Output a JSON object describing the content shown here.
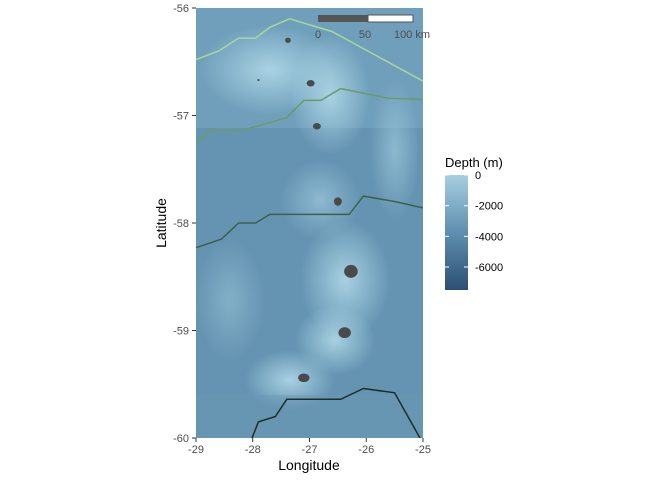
{
  "chart_data": {
    "type": "map",
    "xlabel": "Longitude",
    "ylabel": "Latitude",
    "xlim": [
      -29,
      -25
    ],
    "ylim": [
      -60,
      -56
    ],
    "x_ticks": [
      {
        "value": -29,
        "label": "-29"
      },
      {
        "value": -28,
        "label": "-28"
      },
      {
        "value": -27,
        "label": "-27"
      },
      {
        "value": -26,
        "label": "-26"
      },
      {
        "value": -25,
        "label": "-25"
      }
    ],
    "y_ticks": [
      {
        "value": -56,
        "label": "-56"
      },
      {
        "value": -57,
        "label": "-57"
      },
      {
        "value": -58,
        "label": "-58"
      },
      {
        "value": -59,
        "label": "-59"
      },
      {
        "value": -60,
        "label": "-60"
      }
    ],
    "legend": {
      "title": "Depth (m)",
      "placement": "right",
      "range": [
        -7500,
        0
      ],
      "color_shallow": "#a6cfe0",
      "color_deep": "#2c4f72",
      "breaks": [
        {
          "value": 0,
          "label": "0"
        },
        {
          "value": -2000,
          "label": "-2000"
        },
        {
          "value": -4000,
          "label": "-4000"
        },
        {
          "value": -6000,
          "label": "-6000"
        }
      ]
    },
    "scale_bar": {
      "labels": [
        "0",
        "50",
        "100 km"
      ]
    },
    "front_lines": [
      {
        "color": "#a8d79b",
        "points": [
          [
            -29,
            -56.48
          ],
          [
            -28.6,
            -56.4
          ],
          [
            -28.25,
            -56.28
          ],
          [
            -27.95,
            -56.28
          ],
          [
            -27.7,
            -56.18
          ],
          [
            -27.35,
            -56.1
          ],
          [
            -26.6,
            -56.22
          ],
          [
            -25.8,
            -56.45
          ],
          [
            -25,
            -56.68
          ]
        ]
      },
      {
        "color": "#6a9c66",
        "points": [
          [
            -29,
            -57.27
          ],
          [
            -28.75,
            -57.13
          ],
          [
            -28.2,
            -57.14
          ],
          [
            -27.4,
            -57.02
          ],
          [
            -27.1,
            -56.86
          ],
          [
            -26.8,
            -56.86
          ],
          [
            -26.45,
            -56.75
          ],
          [
            -25.6,
            -56.84
          ],
          [
            -25,
            -56.85
          ]
        ]
      },
      {
        "color": "#3d6148",
        "points": [
          [
            -29,
            -58.23
          ],
          [
            -28.55,
            -58.15
          ],
          [
            -28.25,
            -58.0
          ],
          [
            -27.95,
            -58.0
          ],
          [
            -27.7,
            -57.92
          ],
          [
            -26.3,
            -57.92
          ],
          [
            -26.05,
            -57.75
          ],
          [
            -25.5,
            -57.8
          ],
          [
            -25,
            -57.86
          ]
        ]
      },
      {
        "color": "#1e2e24",
        "points": [
          [
            -28.05,
            -60.05
          ],
          [
            -27.9,
            -59.85
          ],
          [
            -27.6,
            -59.8
          ],
          [
            -27.4,
            -59.64
          ],
          [
            -26.45,
            -59.64
          ],
          [
            -26.05,
            -59.54
          ],
          [
            -25.5,
            -59.58
          ],
          [
            -25,
            -60.05
          ]
        ]
      }
    ],
    "islands": [
      {
        "lon": -27.38,
        "lat": -56.3,
        "rx": 0.05,
        "ry": 0.025
      },
      {
        "lon": -27.9,
        "lat": -56.67,
        "rx": 0.02,
        "ry": 0.01
      },
      {
        "lon": -26.98,
        "lat": -56.7,
        "rx": 0.07,
        "ry": 0.03
      },
      {
        "lon": -26.87,
        "lat": -57.1,
        "rx": 0.07,
        "ry": 0.03
      },
      {
        "lon": -26.5,
        "lat": -57.8,
        "rx": 0.07,
        "ry": 0.04
      },
      {
        "lon": -26.27,
        "lat": -58.45,
        "rx": 0.12,
        "ry": 0.06
      },
      {
        "lon": -26.38,
        "lat": -59.02,
        "rx": 0.11,
        "ry": 0.05
      },
      {
        "lon": -27.1,
        "lat": -59.44,
        "rx": 0.1,
        "ry": 0.04
      }
    ]
  }
}
